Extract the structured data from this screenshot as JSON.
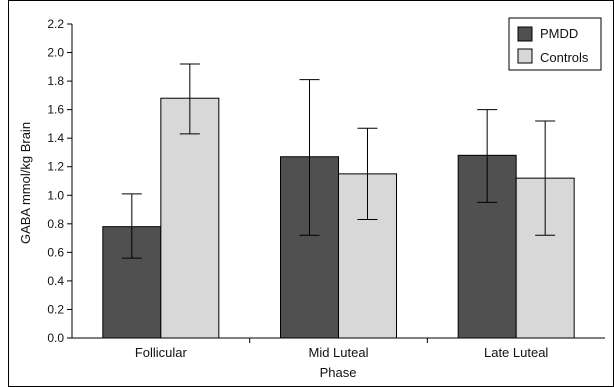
{
  "chart_data": {
    "type": "bar",
    "xlabel": "Phase",
    "ylabel": "GABA mmol/kg Brain",
    "ylim": [
      0,
      2.2
    ],
    "y_ticks": [
      "0.0",
      "0.2",
      "0.4",
      "0.6",
      "0.8",
      "1.0",
      "1.2",
      "1.4",
      "1.6",
      "1.8",
      "2.0",
      "2.2"
    ],
    "categories": [
      "Follicular",
      "Mid Luteal",
      "Late Luteal"
    ],
    "legend_position": "top-right",
    "grid": false,
    "series": [
      {
        "name": "PMDD",
        "color": "#505050",
        "values": [
          0.78,
          1.27,
          1.28
        ],
        "error_low": [
          0.56,
          0.72,
          0.95
        ],
        "error_high": [
          1.01,
          1.81,
          1.6
        ]
      },
      {
        "name": "Controls",
        "color": "#d8d8d8",
        "values": [
          1.68,
          1.15,
          1.12
        ],
        "error_low": [
          1.43,
          0.83,
          0.72
        ],
        "error_high": [
          1.92,
          1.47,
          1.52
        ]
      }
    ]
  }
}
